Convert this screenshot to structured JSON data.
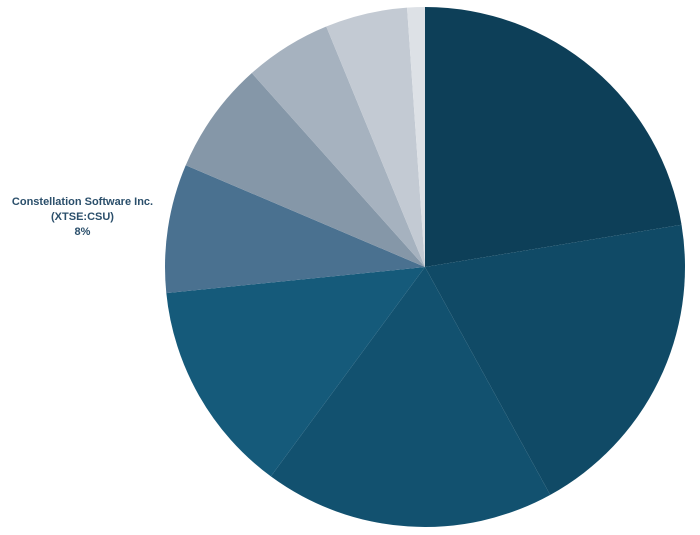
{
  "chart_data": {
    "type": "pie",
    "categories": [
      null,
      null,
      null,
      null,
      "Constellation Software Inc. (XTSE:CSU)",
      null,
      null,
      null,
      null
    ],
    "values": [
      22.4,
      19.6,
      18.1,
      13.3,
      8,
      7,
      5.4,
      5.1,
      1.1
    ],
    "value_labels": [
      null,
      null,
      null,
      null,
      "8%",
      null,
      null,
      null,
      null
    ],
    "colors": [
      "#0d3f58",
      "#104a66",
      "#12516f",
      "#155a7a",
      "#4a7190",
      "#8597a8",
      "#a6b2bf",
      "#c3cad3",
      "#dde1e6"
    ]
  }
}
